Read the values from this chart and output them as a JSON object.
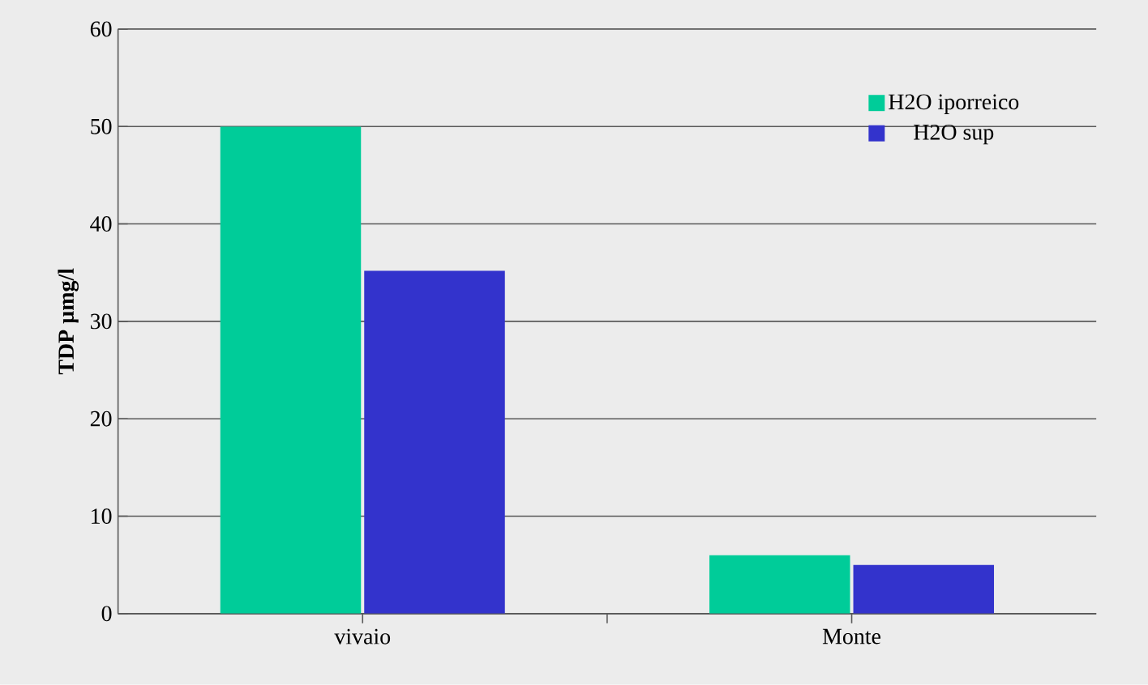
{
  "chart_data": {
    "type": "bar",
    "ylabel": "TDP µmg/l",
    "categories": [
      "vivaio",
      "Monte"
    ],
    "series": [
      {
        "name": "H2O iporreico",
        "color": "#00cc99",
        "values": [
          50,
          6
        ]
      },
      {
        "name": "H2O sup",
        "color": "#3333cc",
        "values": [
          35.2,
          5
        ]
      }
    ],
    "ylim": [
      0,
      60
    ],
    "yticks": [
      0,
      10,
      20,
      30,
      40,
      50,
      60
    ],
    "grid": "y",
    "legend": "top right"
  }
}
